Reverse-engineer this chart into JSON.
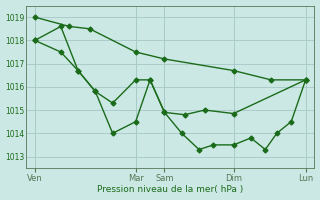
{
  "bg_color": "#cce8e4",
  "grid_color": "#aaccca",
  "line_color": "#1a6b1a",
  "marker": "D",
  "markersize": 2.5,
  "linewidth": 1.0,
  "xlabel": "Pression niveau de la mer( hPa )",
  "ylim": [
    1012.5,
    1019.5
  ],
  "yticks": [
    1013,
    1014,
    1015,
    1016,
    1017,
    1018,
    1019
  ],
  "xlim": [
    0,
    100
  ],
  "xtick_positions": [
    3,
    38,
    48,
    72,
    97
  ],
  "xtick_labels": [
    "Ven",
    "Mar",
    "Sam",
    "Dim",
    "Lun"
  ],
  "vline_positions": [
    3,
    38,
    48,
    72,
    97
  ],
  "line1_x": [
    3,
    15,
    22,
    38,
    48,
    72,
    85,
    97
  ],
  "line1_y": [
    1019.0,
    1018.6,
    1018.5,
    1017.5,
    1017.2,
    1016.7,
    1016.3,
    1016.3
  ],
  "line2_x": [
    3,
    12,
    18,
    24,
    30,
    38,
    43,
    48,
    55,
    62,
    72,
    97
  ],
  "line2_y": [
    1018.0,
    1018.6,
    1016.7,
    1015.8,
    1015.3,
    1016.3,
    1016.3,
    1014.9,
    1014.8,
    1015.0,
    1014.85,
    1016.3
  ],
  "line3_x": [
    3,
    12,
    18,
    24,
    30,
    38,
    43,
    48,
    54,
    60,
    65,
    72,
    78,
    83,
    87,
    92,
    97
  ],
  "line3_y": [
    1018.0,
    1017.5,
    1016.7,
    1015.8,
    1014.0,
    1014.5,
    1016.3,
    1014.9,
    1014.0,
    1013.3,
    1013.5,
    1013.5,
    1013.8,
    1013.3,
    1014.0,
    1014.5,
    1016.3
  ]
}
